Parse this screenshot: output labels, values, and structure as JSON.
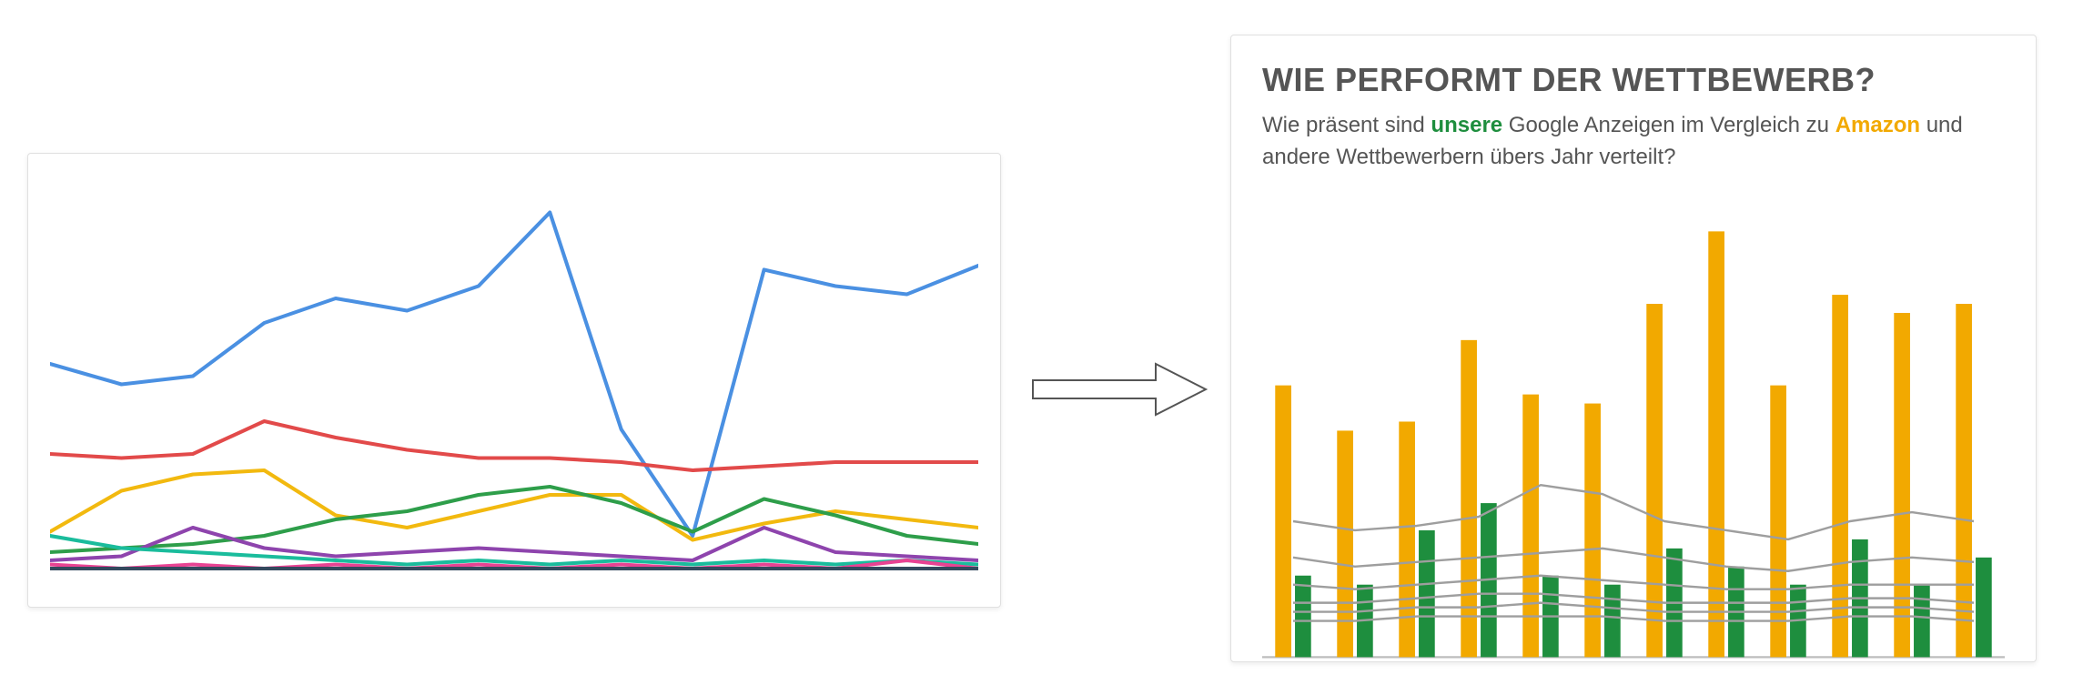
{
  "left_chart": {
    "type": "line",
    "background_color": "#ffffff",
    "xlim": [
      0,
      11
    ],
    "ylim": [
      0,
      100
    ],
    "line_width": 4,
    "series": [
      {
        "name": "blue",
        "color": "#4a90e2",
        "values": [
          54,
          49,
          51,
          64,
          70,
          67,
          73,
          91,
          38,
          12,
          77,
          73,
          71,
          78
        ]
      },
      {
        "name": "red",
        "color": "#e24a4a",
        "values": [
          32,
          31,
          32,
          40,
          36,
          33,
          31,
          31,
          30,
          28,
          29,
          30,
          30,
          30
        ]
      },
      {
        "name": "yellow",
        "color": "#f2b90f",
        "values": [
          13,
          23,
          27,
          28,
          17,
          14,
          18,
          22,
          22,
          11,
          15,
          18,
          16,
          14
        ]
      },
      {
        "name": "green",
        "color": "#2e9e4a",
        "values": [
          8,
          9,
          10,
          12,
          16,
          18,
          22,
          24,
          20,
          13,
          21,
          17,
          12,
          10
        ]
      },
      {
        "name": "purple",
        "color": "#8e44ad",
        "values": [
          6,
          7,
          14,
          9,
          7,
          8,
          9,
          8,
          7,
          6,
          14,
          8,
          7,
          6
        ]
      },
      {
        "name": "teal",
        "color": "#1abc9c",
        "values": [
          12,
          9,
          8,
          7,
          6,
          5,
          6,
          5,
          6,
          5,
          6,
          5,
          6,
          5
        ]
      },
      {
        "name": "magenta",
        "color": "#e84393",
        "values": [
          5,
          4,
          5,
          4,
          5,
          4,
          5,
          4,
          5,
          4,
          5,
          4,
          6,
          4
        ]
      },
      {
        "name": "navy",
        "color": "#34495e",
        "values": [
          4,
          4,
          4,
          4,
          4,
          4,
          4,
          4,
          4,
          4,
          4,
          4,
          4,
          4
        ]
      }
    ]
  },
  "arrow": {
    "stroke": "#555555",
    "fill": "#ffffff",
    "stroke_width": 2
  },
  "right_panel": {
    "title": "WIE PERFORMT DER WETTBEWERB?",
    "title_color": "#555555",
    "title_fontsize": 36,
    "subtitle_parts": [
      {
        "text": "Wie präsent sind ",
        "color": "#555555"
      },
      {
        "text": "unsere",
        "color": "#1e8e3e",
        "bold": true
      },
      {
        "text": " Google Anzeigen im Vergleich zu ",
        "color": "#555555"
      },
      {
        "text": "Amazon",
        "color": "#f2a900",
        "bold": true
      },
      {
        "text": " und andere Wettbewerbern übers Jahr verteilt?",
        "color": "#555555"
      }
    ],
    "subtitle_fontsize": 24,
    "subtitle_color": "#555555",
    "chart": {
      "type": "grouped-bar-with-lines",
      "background_color": "#ffffff",
      "xlim": [
        0,
        12
      ],
      "ylim": [
        0,
        100
      ],
      "categories_count": 12,
      "bar_group_width": 0.58,
      "bar_gap": 0.06,
      "bars": {
        "amazon": {
          "color": "#f2a900",
          "values": [
            60,
            50,
            52,
            70,
            58,
            56,
            78,
            94,
            60,
            80,
            76,
            78
          ]
        },
        "unsere": {
          "color": "#1e8e3e",
          "values": [
            18,
            16,
            28,
            34,
            18,
            16,
            24,
            20,
            16,
            26,
            16,
            22
          ]
        }
      },
      "lines": {
        "color": "#9e9e9e",
        "line_width": 2.2,
        "series": [
          [
            30,
            28,
            29,
            31,
            38,
            36,
            30,
            28,
            26,
            30,
            32,
            30
          ],
          [
            22,
            20,
            21,
            22,
            23,
            24,
            22,
            20,
            19,
            21,
            22,
            21
          ],
          [
            16,
            15,
            16,
            17,
            18,
            17,
            16,
            15,
            15,
            16,
            16,
            16
          ],
          [
            12,
            12,
            13,
            14,
            14,
            13,
            12,
            12,
            12,
            13,
            13,
            12
          ],
          [
            10,
            10,
            11,
            11,
            12,
            11,
            10,
            10,
            10,
            11,
            11,
            10
          ],
          [
            8,
            8,
            9,
            9,
            9,
            9,
            8,
            8,
            8,
            9,
            9,
            8
          ]
        ]
      },
      "baseline_color": "#bdbdbd"
    }
  }
}
